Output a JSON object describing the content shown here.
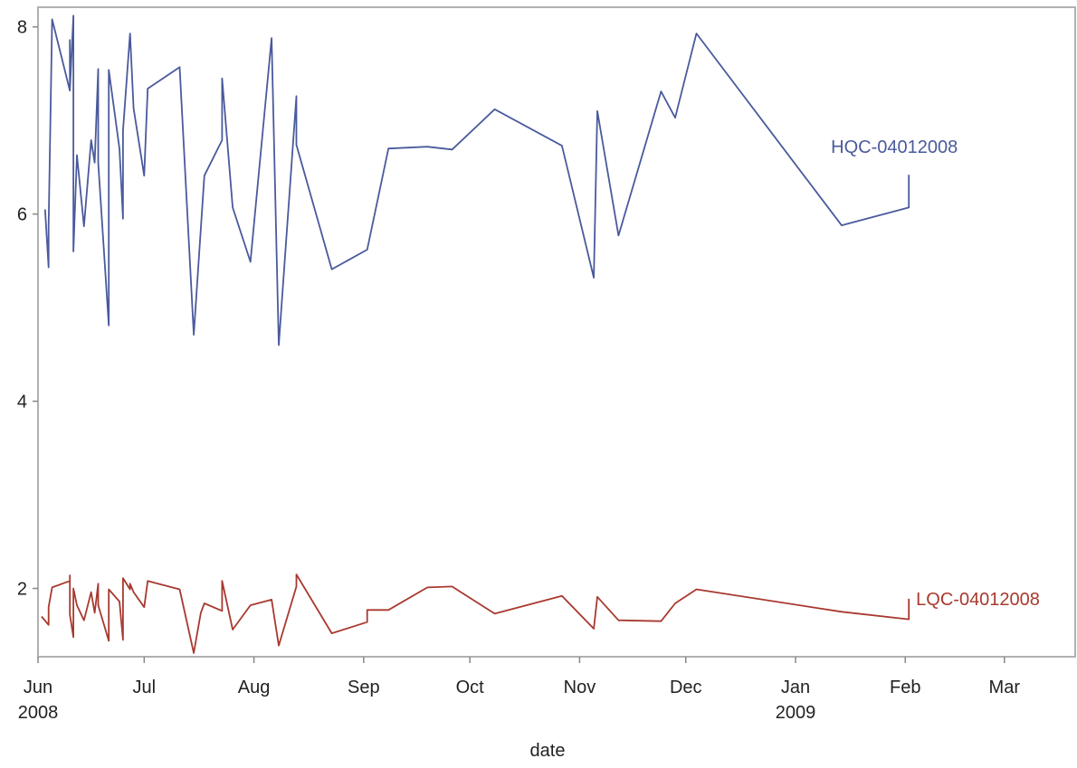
{
  "chart_data": {
    "type": "line",
    "x_label": "date",
    "xlim": [
      "2008-06-01",
      "2009-03-21"
    ],
    "ylim": [
      1.27,
      8.21
    ],
    "yticks": [
      2,
      4,
      6,
      8
    ],
    "xticks": [
      {
        "value": "2008-06-01",
        "label": "Jun\n2008"
      },
      {
        "value": "2008-07-01",
        "label": "Jul"
      },
      {
        "value": "2008-08-01",
        "label": "Aug"
      },
      {
        "value": "2008-09-01",
        "label": "Sep"
      },
      {
        "value": "2008-10-01",
        "label": "Oct"
      },
      {
        "value": "2008-11-01",
        "label": "Nov"
      },
      {
        "value": "2008-12-01",
        "label": "Dec"
      },
      {
        "value": "2009-01-01",
        "label": "Jan\n2009"
      },
      {
        "value": "2009-02-01",
        "label": "Feb"
      },
      {
        "value": "2009-03-01",
        "label": "Mar"
      }
    ],
    "series": [
      {
        "name": "HQC-04012008",
        "color": "#4a5a9c",
        "x": [
          "2008-06-03",
          "2008-06-04",
          "2008-06-04",
          "2008-06-05",
          "2008-06-10",
          "2008-06-10",
          "2008-06-10",
          "2008-06-11",
          "2008-06-11",
          "2008-06-12",
          "2008-06-14",
          "2008-06-16",
          "2008-06-17",
          "2008-06-18",
          "2008-06-18",
          "2008-06-21",
          "2008-06-21",
          "2008-06-24",
          "2008-06-25",
          "2008-06-25",
          "2008-06-27",
          "2008-06-28",
          "2008-07-01",
          "2008-07-02",
          "2008-07-11",
          "2008-07-15",
          "2008-07-18",
          "2008-07-23",
          "2008-07-23",
          "2008-07-26",
          "2008-07-31",
          "2008-08-06",
          "2008-08-08",
          "2008-08-13",
          "2008-08-13",
          "2008-08-23",
          "2008-09-02",
          "2008-09-08",
          "2008-09-19",
          "2008-09-26",
          "2008-10-08",
          "2008-10-27",
          "2008-11-05",
          "2008-11-06",
          "2008-11-12",
          "2008-11-24",
          "2008-11-28",
          "2008-12-04",
          "2009-01-14",
          "2009-02-02",
          "2009-02-02"
        ],
        "values": [
          6.05,
          5.43,
          5.87,
          8.08,
          7.32,
          7.86,
          7.32,
          8.12,
          5.6,
          6.63,
          5.87,
          6.79,
          6.55,
          7.55,
          6.55,
          4.81,
          7.54,
          6.7,
          5.95,
          6.89,
          7.93,
          7.13,
          6.41,
          7.34,
          7.57,
          4.71,
          6.41,
          6.79,
          7.45,
          6.07,
          5.49,
          7.88,
          4.6,
          7.26,
          6.74,
          5.41,
          5.62,
          6.7,
          6.72,
          6.69,
          7.12,
          6.73,
          5.32,
          7.1,
          5.77,
          7.31,
          7.03,
          7.93,
          5.88,
          6.07,
          6.42
        ]
      },
      {
        "name": "LQC-04012008",
        "color": "#a8392f",
        "x": [
          "2008-06-02",
          "2008-06-04",
          "2008-06-04",
          "2008-06-05",
          "2008-06-10",
          "2008-06-10",
          "2008-06-10",
          "2008-06-11",
          "2008-06-11",
          "2008-06-12",
          "2008-06-14",
          "2008-06-16",
          "2008-06-17",
          "2008-06-18",
          "2008-06-18",
          "2008-06-21",
          "2008-06-21",
          "2008-06-24",
          "2008-06-25",
          "2008-06-25",
          "2008-06-27",
          "2008-06-27",
          "2008-06-28",
          "2008-07-01",
          "2008-07-02",
          "2008-07-11",
          "2008-07-15",
          "2008-07-17",
          "2008-07-18",
          "2008-07-23",
          "2008-07-23",
          "2008-07-26",
          "2008-07-31",
          "2008-08-06",
          "2008-08-08",
          "2008-08-13",
          "2008-08-13",
          "2008-08-23",
          "2008-09-02",
          "2008-09-02",
          "2008-09-08",
          "2008-09-19",
          "2008-09-26",
          "2008-10-08",
          "2008-10-27",
          "2008-11-05",
          "2008-11-06",
          "2008-11-12",
          "2008-11-24",
          "2008-11-28",
          "2008-12-04",
          "2009-01-14",
          "2009-02-02",
          "2009-02-02"
        ],
        "values": [
          1.7,
          1.61,
          1.8,
          2.01,
          2.08,
          2.14,
          1.72,
          1.48,
          2.0,
          1.82,
          1.66,
          1.96,
          1.74,
          2.05,
          1.82,
          1.44,
          1.99,
          1.86,
          1.45,
          2.11,
          1.99,
          2.05,
          1.96,
          1.8,
          2.08,
          1.99,
          1.31,
          1.74,
          1.84,
          1.76,
          2.08,
          1.56,
          1.82,
          1.88,
          1.39,
          2.02,
          2.15,
          1.52,
          1.64,
          1.77,
          1.77,
          2.01,
          2.02,
          1.73,
          1.92,
          1.57,
          1.91,
          1.66,
          1.65,
          1.84,
          1.99,
          1.75,
          1.67,
          1.89
        ]
      }
    ]
  }
}
